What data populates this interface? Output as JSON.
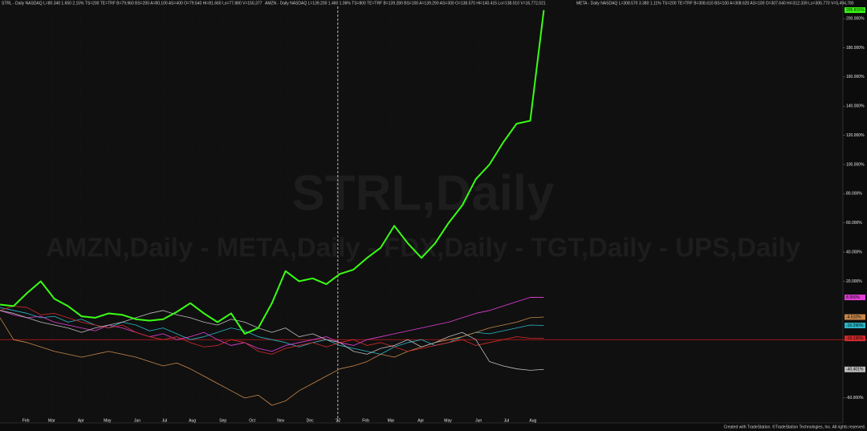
{
  "chart_data": {
    "type": "line",
    "watermark": "STRL,Daily",
    "watermark2": "AMZN,Daily - META,Daily - FDX,Daily - TGT,Daily - UPS,Daily",
    "header": [
      "STRL - Daily  NASDAQ  L=80.340  1.650  2.15%  TS=200  TE=TRF     B=79.960  BS=200  A=80.100  AS=400  O=79.540  Hi=81.660  Lo=77.880  V=150,377",
      "AMZN - Daily  NASDAQ  L=139.200  1.460  1.06%  TS=800  TE=TRF     B=139.280  BS=100  A=139.290  AS=300  O=138.570  Hi=140.415  Lo=138.010  V=16,772,021",
      "META - Daily  NASDAQ  L=308.570  3.380  1.11%  TS=200  TE=TRF     B=308.610  BS=100  A=308.620  AS=100  O=307.640  Hi=312.339  Lo=306.770  V=5,494,780"
    ],
    "credit": "Created with TradeStation. ©TradeStation Technologies, Inc. All rights reserved.",
    "x": [
      0,
      2,
      4,
      6,
      8,
      10,
      12,
      14,
      16,
      18,
      20,
      22,
      24,
      26,
      28,
      30,
      32,
      34,
      36,
      38,
      40,
      42,
      44,
      46,
      48,
      50,
      52,
      54,
      56,
      58,
      60,
      62,
      64,
      66,
      68,
      70,
      72,
      74,
      76,
      78,
      80
    ],
    "xlim": [
      0,
      124
    ],
    "xticks": [
      {
        "value": 3.8,
        "label": "Feb"
      },
      {
        "value": 7.6,
        "label": "Mar"
      },
      {
        "value": 11.9,
        "label": "Apr"
      },
      {
        "value": 15.8,
        "label": "May"
      },
      {
        "value": 20.2,
        "label": "Jun"
      },
      {
        "value": 24.2,
        "label": "Jul"
      },
      {
        "value": 28.3,
        "label": "Aug"
      },
      {
        "value": 32.8,
        "label": "Sep"
      },
      {
        "value": 37.1,
        "label": "Oct"
      },
      {
        "value": 41.3,
        "label": "Nov"
      },
      {
        "value": 45.6,
        "label": "Dec"
      },
      {
        "value": 49.7,
        "label": "'22"
      },
      {
        "value": 53.8,
        "label": "Feb"
      },
      {
        "value": 57.5,
        "label": "Mar"
      },
      {
        "value": 61.9,
        "label": "Apr"
      },
      {
        "value": 65.9,
        "label": "May"
      },
      {
        "value": 70.4,
        "label": "Jun"
      },
      {
        "value": 74.5,
        "label": "Jul"
      },
      {
        "value": 78.4,
        "label": "Aug"
      }
    ],
    "ylim": [
      -76,
      210
    ],
    "yticks": [
      {
        "value": 200,
        "label": "200.000%"
      },
      {
        "value": 180,
        "label": "180.000%"
      },
      {
        "value": 160,
        "label": "160.000%"
      },
      {
        "value": 140,
        "label": "140.000%"
      },
      {
        "value": 120,
        "label": "120.000%"
      },
      {
        "value": 100,
        "label": "100.000%"
      },
      {
        "value": 80,
        "label": "80.000%"
      },
      {
        "value": 60,
        "label": "60.000%"
      },
      {
        "value": 40,
        "label": "40.000%"
      },
      {
        "value": 20,
        "label": "20.000%"
      },
      {
        "value": -60,
        "label": "-60.000%"
      }
    ],
    "reference_line": -20,
    "reference_color": "#b01818",
    "divider_x": 49.7,
    "series": [
      {
        "name": "STRL",
        "color": "#39ff14",
        "values": [
          4,
          3,
          12,
          20,
          8,
          3,
          -4,
          -5,
          -2,
          -3,
          -6,
          -7,
          -6,
          -1,
          5,
          -2,
          -8,
          -2,
          -16,
          -12,
          5,
          27,
          20,
          22,
          18,
          25,
          28,
          36,
          43,
          58,
          46,
          36,
          46,
          60,
          72,
          90,
          100,
          115,
          128,
          130,
          205.815
        ],
        "value_labels": [
          null,
          null,
          null,
          null,
          null,
          null,
          null,
          null,
          null,
          null,
          null,
          null,
          null,
          null,
          null,
          null,
          null,
          null,
          null,
          null,
          null,
          null,
          null,
          null,
          null,
          null,
          null,
          null,
          null,
          null,
          null,
          null,
          null,
          null,
          null,
          null,
          null,
          null,
          null,
          null,
          "205.815%"
        ]
      },
      {
        "name": "AMZN",
        "color": "#bdbdbd",
        "values": [
          0,
          -2,
          -5,
          -8,
          -10,
          -12,
          -15,
          -12,
          -10,
          -8,
          -5,
          -2,
          0,
          -3,
          -5,
          -8,
          -10,
          -6,
          -8,
          -12,
          -15,
          -12,
          -18,
          -16,
          -20,
          -22,
          -28,
          -30,
          -26,
          -24,
          -20,
          -25,
          -22,
          -18,
          -15,
          -20,
          -35,
          -38,
          -40,
          -41,
          -40.401
        ],
        "value_labels": [
          null,
          null,
          null,
          null,
          null,
          null,
          null,
          null,
          null,
          null,
          null,
          null,
          null,
          null,
          null,
          null,
          null,
          null,
          null,
          null,
          null,
          null,
          null,
          null,
          null,
          null,
          null,
          null,
          null,
          null,
          null,
          null,
          null,
          null,
          null,
          null,
          null,
          null,
          null,
          null,
          "-40.401%"
        ]
      },
      {
        "name": "META",
        "color": "#d42a2a",
        "values": [
          0,
          3,
          2,
          -3,
          -2,
          -5,
          -8,
          -10,
          -12,
          -10,
          -15,
          -18,
          -20,
          -18,
          -22,
          -25,
          -24,
          -20,
          -22,
          -28,
          -30,
          -26,
          -24,
          -22,
          -25,
          -22,
          -20,
          -24,
          -22,
          -25,
          -28,
          -26,
          -24,
          -22,
          -20,
          -24,
          -22,
          -20,
          -18,
          -19,
          -19.13
        ],
        "value_labels": [
          null,
          null,
          null,
          null,
          null,
          null,
          null,
          null,
          null,
          null,
          null,
          null,
          null,
          null,
          null,
          null,
          null,
          null,
          null,
          null,
          null,
          null,
          null,
          null,
          null,
          null,
          null,
          null,
          null,
          null,
          null,
          null,
          null,
          null,
          null,
          null,
          null,
          null,
          null,
          null,
          "-19.130%"
        ]
      },
      {
        "name": "FDX",
        "color": "#c8874a",
        "values": [
          -5,
          -20,
          -22,
          -25,
          -28,
          -30,
          -32,
          -30,
          -28,
          -30,
          -32,
          -35,
          -38,
          -36,
          -40,
          -45,
          -50,
          -55,
          -60,
          -58,
          -65,
          -62,
          -55,
          -50,
          -45,
          -40,
          -38,
          -35,
          -30,
          -32,
          -28,
          -25,
          -22,
          -20,
          -18,
          -15,
          -12,
          -10,
          -8,
          -5,
          -4.51
        ],
        "value_labels": [
          null,
          null,
          null,
          null,
          null,
          null,
          null,
          null,
          null,
          null,
          null,
          null,
          null,
          null,
          null,
          null,
          null,
          null,
          null,
          null,
          null,
          null,
          null,
          null,
          null,
          null,
          null,
          null,
          null,
          null,
          null,
          null,
          null,
          null,
          null,
          null,
          null,
          null,
          null,
          null,
          "-4.510%"
        ]
      },
      {
        "name": "TGT",
        "color": "#e23fd6",
        "values": [
          0,
          -3,
          -5,
          -4,
          -8,
          -10,
          -12,
          -14,
          -10,
          -12,
          -15,
          -18,
          -16,
          -20,
          -18,
          -15,
          -20,
          -24,
          -22,
          -26,
          -28,
          -24,
          -22,
          -20,
          -18,
          -22,
          -24,
          -20,
          -18,
          -16,
          -14,
          -12,
          -10,
          -8,
          -5,
          -2,
          0,
          3,
          6,
          9,
          8.95
        ],
        "value_labels": [
          null,
          null,
          null,
          null,
          null,
          null,
          null,
          null,
          null,
          null,
          null,
          null,
          null,
          null,
          null,
          null,
          null,
          null,
          null,
          null,
          null,
          null,
          null,
          null,
          null,
          null,
          null,
          null,
          null,
          null,
          null,
          null,
          null,
          null,
          null,
          null,
          null,
          null,
          null,
          null,
          "8.950%"
        ]
      },
      {
        "name": "UPS",
        "color": "#2bb6c9",
        "values": [
          2,
          0,
          -2,
          -5,
          -4,
          -8,
          -6,
          -10,
          -12,
          -8,
          -10,
          -14,
          -12,
          -16,
          -20,
          -18,
          -15,
          -12,
          -14,
          -18,
          -20,
          -22,
          -25,
          -22,
          -20,
          -24,
          -26,
          -28,
          -30,
          -25,
          -22,
          -20,
          -24,
          -22,
          -18,
          -15,
          -16,
          -14,
          -12,
          -10,
          -10.29
        ],
        "value_labels": [
          null,
          null,
          null,
          null,
          null,
          null,
          null,
          null,
          null,
          null,
          null,
          null,
          null,
          null,
          null,
          null,
          null,
          null,
          null,
          null,
          null,
          null,
          null,
          null,
          null,
          null,
          null,
          null,
          null,
          null,
          null,
          null,
          null,
          null,
          null,
          null,
          null,
          null,
          null,
          null,
          "-10.290%"
        ]
      }
    ]
  }
}
